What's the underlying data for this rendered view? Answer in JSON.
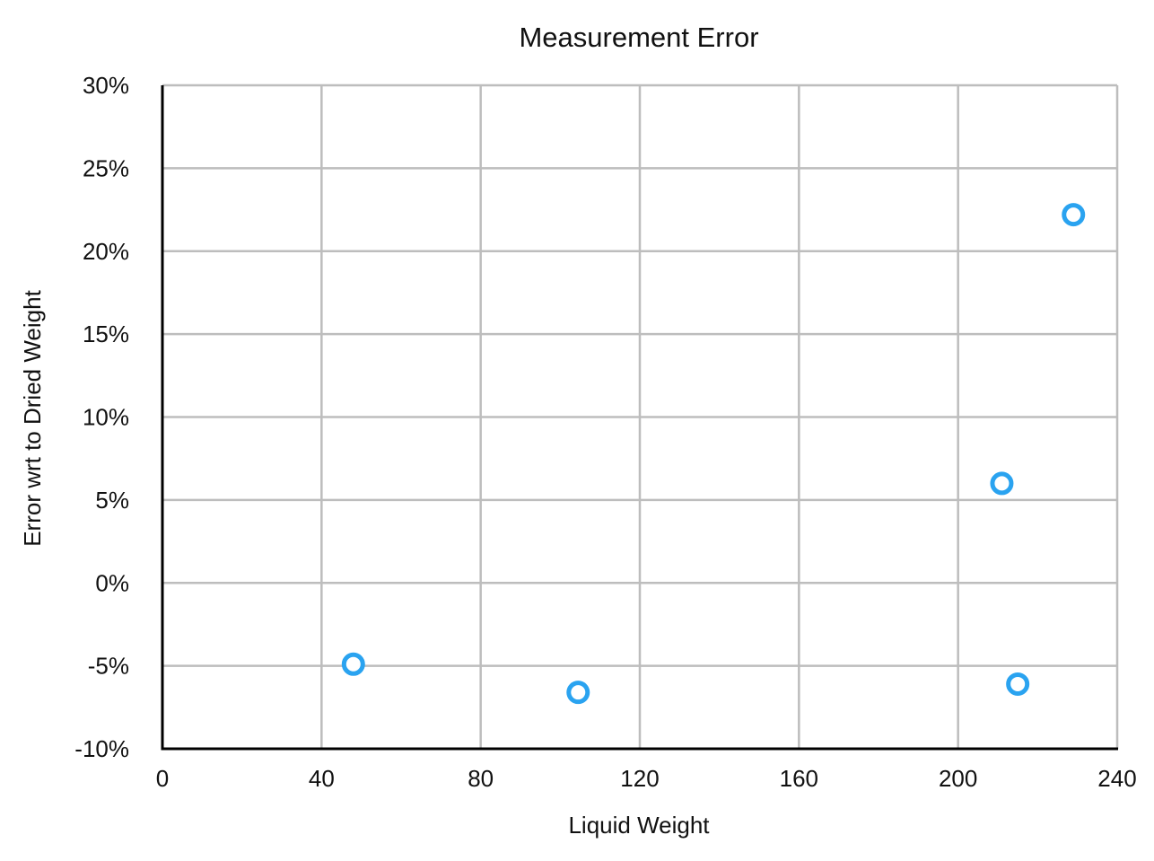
{
  "chart_data": {
    "type": "scatter",
    "title": "Measurement Error",
    "xlabel": "Liquid Weight",
    "ylabel": "Error wrt to Dried Weight",
    "xlim": [
      0,
      240
    ],
    "ylim": [
      -10,
      30
    ],
    "x_ticks": [
      0,
      40,
      80,
      120,
      160,
      200,
      240
    ],
    "x_tick_labels": [
      "0",
      "40",
      "80",
      "120",
      "160",
      "200",
      "240"
    ],
    "y_ticks": [
      -10,
      -5,
      0,
      5,
      10,
      15,
      20,
      25,
      30
    ],
    "y_tick_labels": [
      "-10%",
      "-5%",
      "0%",
      "5%",
      "10%",
      "15%",
      "20%",
      "25%",
      "30%"
    ],
    "grid": true,
    "series": [
      {
        "color": "#2aa3f0",
        "marker": "hollow-circle",
        "points": [
          {
            "x": 48,
            "y": -4.9
          },
          {
            "x": 104.5,
            "y": -6.6
          },
          {
            "x": 211,
            "y": 6.0
          },
          {
            "x": 215,
            "y": -6.1
          },
          {
            "x": 229,
            "y": 22.2
          }
        ]
      }
    ]
  }
}
